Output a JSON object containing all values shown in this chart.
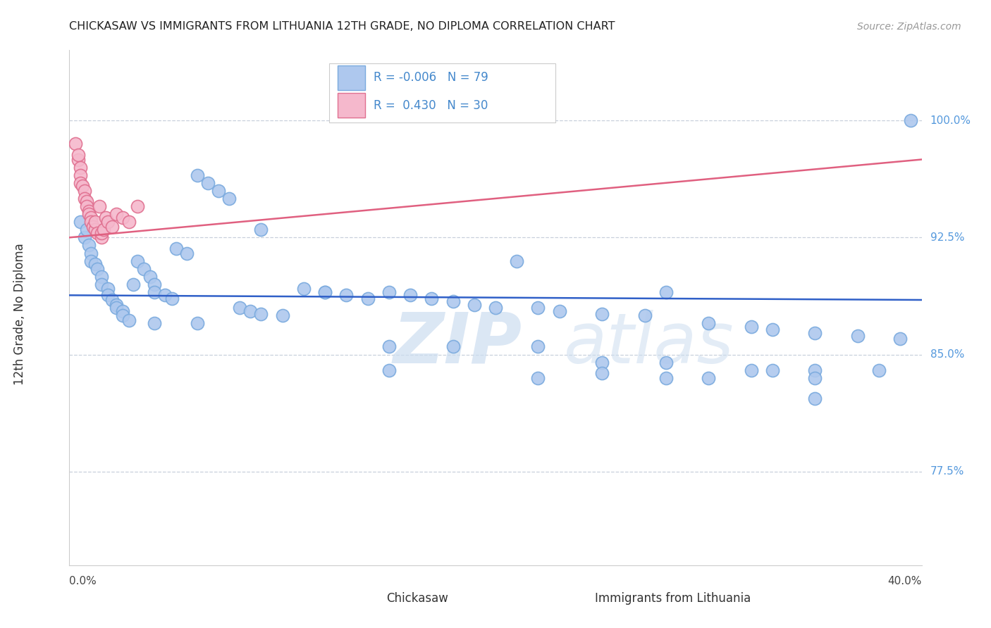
{
  "title": "CHICKASAW VS IMMIGRANTS FROM LITHUANIA 12TH GRADE, NO DIPLOMA CORRELATION CHART",
  "source": "Source: ZipAtlas.com",
  "ylabel": "12th Grade, No Diploma",
  "ytick_labels": [
    "100.0%",
    "92.5%",
    "85.0%",
    "77.5%"
  ],
  "ytick_values": [
    1.0,
    0.925,
    0.85,
    0.775
  ],
  "xmin": 0.0,
  "xmax": 0.4,
  "ymin": 0.715,
  "ymax": 1.045,
  "legend_blue_label": "Chickasaw",
  "legend_pink_label": "Immigrants from Lithuania",
  "R_blue": -0.006,
  "N_blue": 79,
  "R_pink": 0.43,
  "N_pink": 30,
  "blue_color": "#aec8ee",
  "blue_edge_color": "#7aaade",
  "blue_line_color": "#3060c8",
  "pink_color": "#f5b8cc",
  "pink_edge_color": "#e07090",
  "pink_line_color": "#e06080",
  "watermark_zip": "ZIP",
  "watermark_atlas": "atlas",
  "blue_x": [
    0.005,
    0.007,
    0.008,
    0.009,
    0.01,
    0.01,
    0.012,
    0.013,
    0.015,
    0.015,
    0.018,
    0.018,
    0.02,
    0.022,
    0.022,
    0.025,
    0.025,
    0.028,
    0.03,
    0.032,
    0.035,
    0.038,
    0.04,
    0.04,
    0.045,
    0.048,
    0.05,
    0.055,
    0.06,
    0.065,
    0.07,
    0.075,
    0.08,
    0.085,
    0.09,
    0.1,
    0.11,
    0.12,
    0.13,
    0.14,
    0.15,
    0.16,
    0.17,
    0.18,
    0.19,
    0.2,
    0.21,
    0.22,
    0.23,
    0.25,
    0.27,
    0.28,
    0.3,
    0.32,
    0.33,
    0.35,
    0.37,
    0.39,
    0.04,
    0.06,
    0.09,
    0.12,
    0.15,
    0.18,
    0.22,
    0.25,
    0.28,
    0.32,
    0.35,
    0.15,
    0.22,
    0.28,
    0.35,
    0.25,
    0.3,
    0.33,
    0.38,
    0.395,
    0.35
  ],
  "blue_y": [
    0.935,
    0.925,
    0.93,
    0.92,
    0.915,
    0.91,
    0.908,
    0.905,
    0.9,
    0.895,
    0.892,
    0.888,
    0.885,
    0.882,
    0.88,
    0.878,
    0.875,
    0.872,
    0.895,
    0.91,
    0.905,
    0.9,
    0.895,
    0.89,
    0.888,
    0.886,
    0.918,
    0.915,
    0.965,
    0.96,
    0.955,
    0.95,
    0.88,
    0.878,
    0.876,
    0.875,
    0.892,
    0.89,
    0.888,
    0.886,
    0.89,
    0.888,
    0.886,
    0.884,
    0.882,
    0.88,
    0.91,
    0.88,
    0.878,
    0.876,
    0.875,
    0.89,
    0.87,
    0.868,
    0.866,
    0.864,
    0.862,
    0.86,
    0.87,
    0.87,
    0.93,
    0.89,
    0.855,
    0.855,
    0.855,
    0.845,
    0.845,
    0.84,
    0.84,
    0.84,
    0.835,
    0.835,
    0.835,
    0.838,
    0.835,
    0.84,
    0.84,
    1.0,
    0.822
  ],
  "pink_x": [
    0.003,
    0.004,
    0.004,
    0.005,
    0.005,
    0.005,
    0.006,
    0.007,
    0.007,
    0.008,
    0.008,
    0.009,
    0.009,
    0.01,
    0.01,
    0.011,
    0.012,
    0.012,
    0.013,
    0.014,
    0.015,
    0.015,
    0.016,
    0.017,
    0.018,
    0.02,
    0.022,
    0.025,
    0.028,
    0.032
  ],
  "pink_y": [
    0.985,
    0.975,
    0.978,
    0.97,
    0.965,
    0.96,
    0.958,
    0.955,
    0.95,
    0.948,
    0.945,
    0.942,
    0.94,
    0.938,
    0.935,
    0.932,
    0.93,
    0.935,
    0.928,
    0.945,
    0.925,
    0.928,
    0.93,
    0.938,
    0.935,
    0.932,
    0.94,
    0.938,
    0.935,
    0.945
  ],
  "blue_trend_x": [
    0.0,
    0.4
  ],
  "blue_trend_y": [
    0.888,
    0.885
  ],
  "pink_trend_x": [
    0.0,
    0.4
  ],
  "pink_trend_y": [
    0.925,
    0.975
  ]
}
